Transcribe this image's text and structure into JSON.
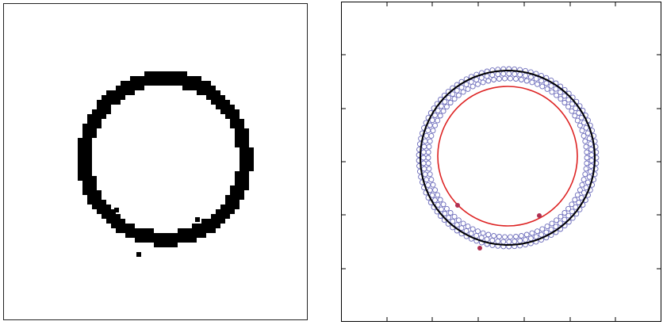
{
  "figure": {
    "left_panel": {
      "kind": "binary-ring-image",
      "foreground_color": "#000000",
      "background_color": "#ffffff",
      "frame_color": "#222222"
    },
    "right_panel": {
      "kind": "circle-fit-plot",
      "frame_color": "#000000",
      "point_marker": "open-circle",
      "point_color": "#6a6aba",
      "outer_fit_color": "#000000",
      "inner_fit_color": "#dd2222",
      "outlier_color": "#b03050",
      "x_ticks": 6,
      "y_ticks": 5
    }
  }
}
